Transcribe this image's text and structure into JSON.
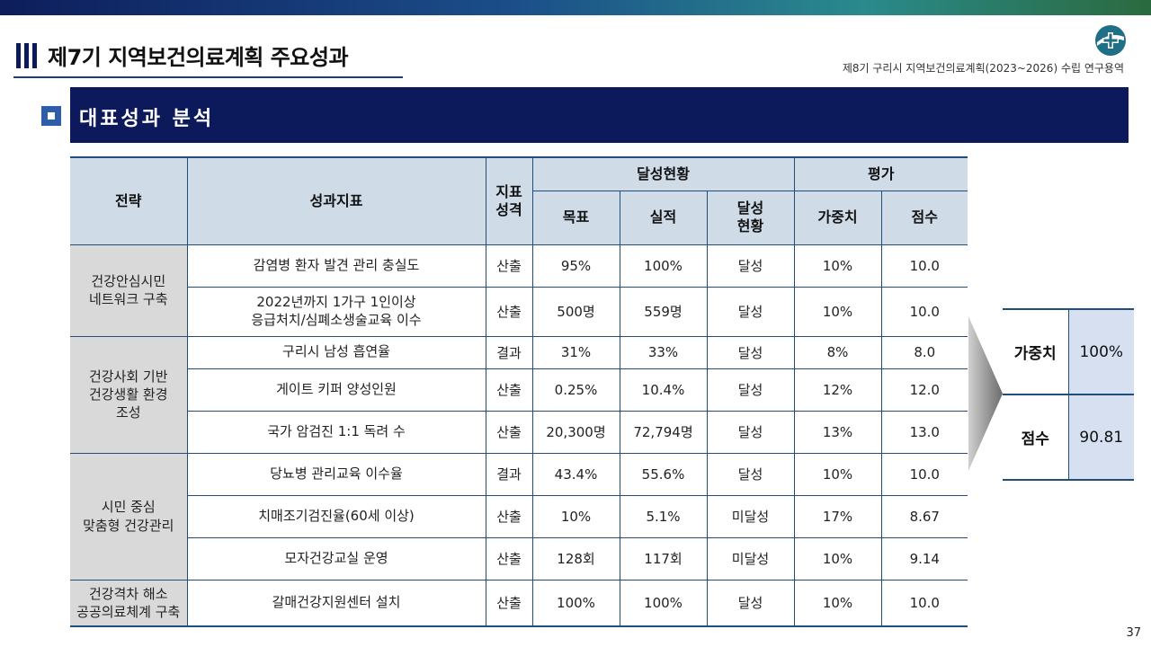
{
  "header": {
    "title": "제7기 지역보건의료계획 주요성과",
    "subtitle": "제8기 구리시 지역보건의료계획(2023~2026) 수립 연구용역",
    "logo_icon": "health-cross-logo"
  },
  "section": {
    "title": "대표성과 분석"
  },
  "colors": {
    "navy": "#0c1a5b",
    "header_fill": "#cfdbe7",
    "strategy_fill": "#d9d9d9",
    "border": "#1f4e7a",
    "summary_fill": "#d6e0f0"
  },
  "table": {
    "headers": {
      "strategy": "전략",
      "indicator": "성과지표",
      "nature": "지표\n성격",
      "achievement": "달성현황",
      "evaluation": "평가",
      "target": "목표",
      "actual": "실적",
      "status": "달성\n현황",
      "weight": "가중치",
      "score": "점수"
    },
    "groups": [
      {
        "strategy": "건강안심시민\n네트워크 구축",
        "rows": [
          {
            "indicator": "감염병 환자 발견 관리 충실도",
            "nature": "산출",
            "target": "95%",
            "actual": "100%",
            "status": "달성",
            "weight": "10%",
            "score": "10.0"
          },
          {
            "indicator": "2022년까지 1가구 1인이상\n응급처치/심폐소생술교육 이수",
            "nature": "산출",
            "target": "500명",
            "actual": "559명",
            "status": "달성",
            "weight": "10%",
            "score": "10.0"
          }
        ]
      },
      {
        "strategy": "건강사회 기반\n건강생활 환경\n조성",
        "rows": [
          {
            "indicator": "구리시 남성 흡연율",
            "nature": "결과",
            "target": "31%",
            "actual": "33%",
            "status": "달성",
            "weight": "8%",
            "score": "8.0"
          },
          {
            "indicator": "게이트 키퍼 양성인원",
            "nature": "산출",
            "target": "0.25%",
            "actual": "10.4%",
            "status": "달성",
            "weight": "12%",
            "score": "12.0"
          },
          {
            "indicator": "국가 암검진 1:1 독려 수",
            "nature": "산출",
            "target": "20,300명",
            "actual": "72,794명",
            "status": "달성",
            "weight": "13%",
            "score": "13.0"
          }
        ]
      },
      {
        "strategy": "시민 중심\n맞춤형 건강관리",
        "rows": [
          {
            "indicator": "당뇨병 관리교육 이수율",
            "nature": "결과",
            "target": "43.4%",
            "actual": "55.6%",
            "status": "달성",
            "weight": "10%",
            "score": "10.0"
          },
          {
            "indicator": "치매조기검진율(60세 이상)",
            "nature": "산출",
            "target": "10%",
            "actual": "5.1%",
            "status": "미달성",
            "weight": "17%",
            "score": "8.67"
          },
          {
            "indicator": "모자건강교실 운영",
            "nature": "산출",
            "target": "128회",
            "actual": "117회",
            "status": "미달성",
            "weight": "10%",
            "score": "9.14"
          }
        ]
      },
      {
        "strategy": "건강격차 해소\n공공의료체계 구축",
        "rows": [
          {
            "indicator": "갈매건강지원센터 설치",
            "nature": "산출",
            "target": "100%",
            "actual": "100%",
            "status": "달성",
            "weight": "10%",
            "score": "10.0"
          }
        ]
      }
    ]
  },
  "summary": {
    "weight_label": "가중치",
    "weight_value": "100%",
    "score_label": "점수",
    "score_value": "90.81"
  },
  "page_number": "37"
}
